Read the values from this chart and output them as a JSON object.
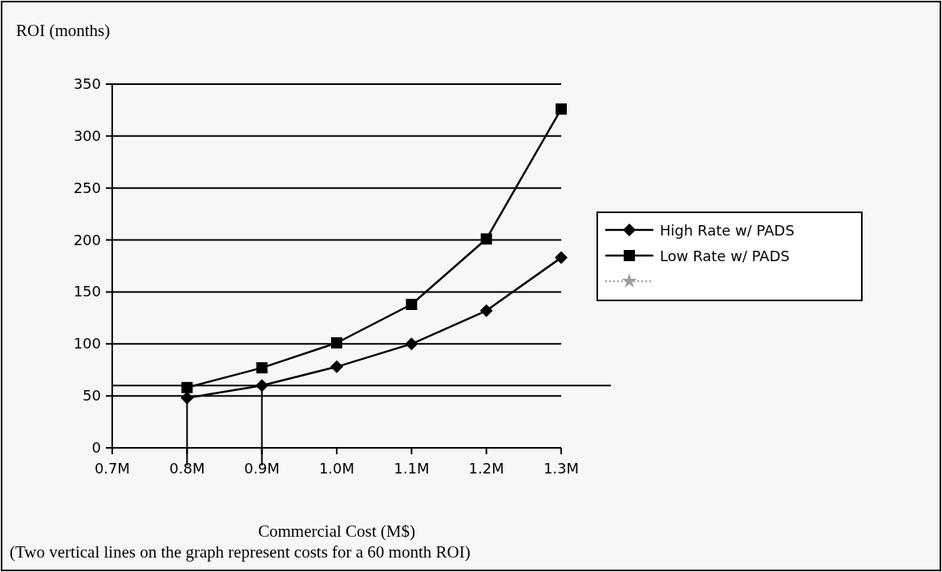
{
  "chart_data": {
    "type": "line",
    "ylabel": "ROI (months)",
    "xlabel": "Commercial Cost (M$)",
    "annotations": [
      "(Two vertical lines on the graph represent costs for a 60 month ROI)"
    ],
    "x": [
      0.8,
      0.9,
      1.0,
      1.1,
      1.2,
      1.3
    ],
    "series": [
      {
        "name": "High Rate w/ PADS",
        "color": "#000000",
        "marker": "diamond",
        "values": [
          48,
          60,
          78,
          100,
          132,
          183
        ]
      },
      {
        "name": "Low Rate w/ PADS",
        "color": "#000000",
        "marker": "square",
        "values": [
          58,
          77,
          101,
          138,
          201,
          326
        ]
      },
      {
        "color": "#a0a0a0",
        "marker": "star",
        "line_style": "dotted",
        "values": [
          null,
          null,
          null,
          null,
          null,
          null
        ]
      }
    ],
    "xlim": [
      0.7,
      1.3
    ],
    "xticks": [
      {
        "value": 0.7,
        "label": "0.7M"
      },
      {
        "value": 0.8,
        "label": "0.8M"
      },
      {
        "value": 0.9,
        "label": "0.9M"
      },
      {
        "value": 1.0,
        "label": "1.0M"
      },
      {
        "value": 1.1,
        "label": "1.1M"
      },
      {
        "value": 1.2,
        "label": "1.2M"
      },
      {
        "value": 1.3,
        "label": "1.3M"
      }
    ],
    "ylim": [
      0,
      350
    ],
    "yticks": [
      0,
      50,
      100,
      150,
      200,
      250,
      300,
      350
    ],
    "grid": "y",
    "legend": "right",
    "ref_lines": [
      {
        "axis": "y",
        "value": 60,
        "color": "#000000"
      },
      {
        "axis": "x",
        "value": 0.8,
        "color": "#000000"
      },
      {
        "axis": "x",
        "value": 0.9,
        "color": "#000000"
      }
    ]
  }
}
